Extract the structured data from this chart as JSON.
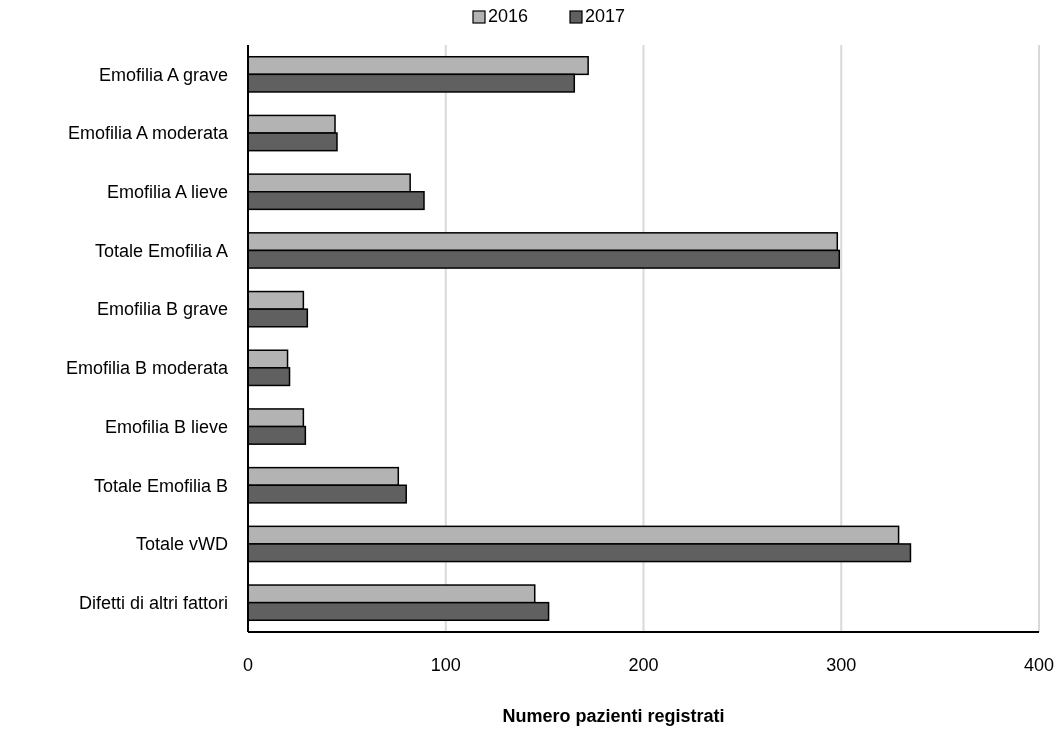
{
  "chart_data": {
    "type": "bar",
    "orientation": "horizontal",
    "xlabel": "Numero pazienti registrati",
    "categories": [
      "Emofilia A grave",
      "Emofilia A moderata",
      "Emofilia A lieve",
      "Totale Emofilia A",
      "Emofilia B grave",
      "Emofilia B moderata",
      "Emofilia B lieve",
      "Totale Emofilia B",
      "Totale vWD",
      "Difetti di altri fattori"
    ],
    "series": [
      {
        "name": "2016",
        "color": "#b3b3b3",
        "values": [
          172,
          44,
          82,
          298,
          28,
          20,
          28,
          76,
          329,
          145
        ]
      },
      {
        "name": "2017",
        "color": "#606060",
        "values": [
          165,
          45,
          89,
          299,
          30,
          21,
          29,
          80,
          335,
          152
        ]
      }
    ],
    "xlim": [
      0,
      400
    ],
    "xticks": [
      0,
      100,
      200,
      300,
      400
    ],
    "grid": "x",
    "legend": "top"
  }
}
